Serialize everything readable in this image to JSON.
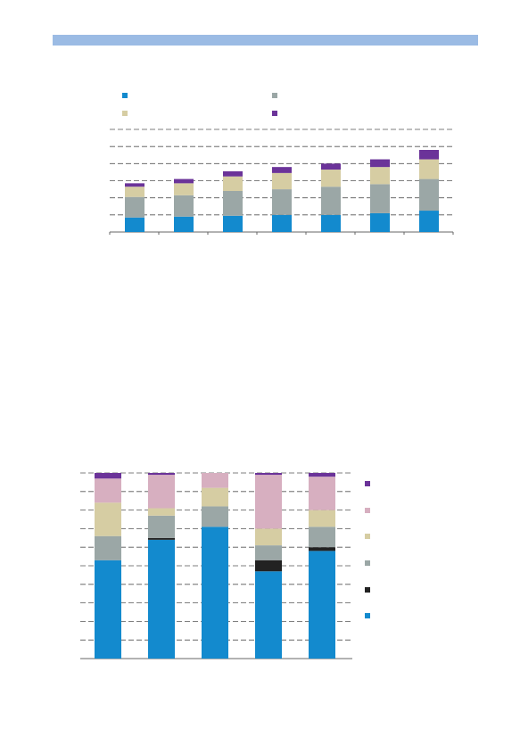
{
  "colors": {
    "band": "#9bbbe4",
    "blue": "#138ace",
    "black": "#222222",
    "gray": "#9ba7a6",
    "beige": "#d6cda3",
    "pink": "#d7afc0",
    "purple": "#6b3399",
    "grid": "#555555",
    "axis": "#666666"
  },
  "chart_data": [
    {
      "type": "bar",
      "stacked": true,
      "categories": [
        "",
        "",
        "",
        "",
        "",
        "",
        ""
      ],
      "ylim": [
        0,
        6
      ],
      "grid": true,
      "legend": "top, 2x2",
      "series": [
        {
          "color": "#138ace",
          "values": [
            0.85,
            0.9,
            0.95,
            1.0,
            1.0,
            1.1,
            1.25
          ]
        },
        {
          "color": "#9ba7a6",
          "values": [
            1.2,
            1.25,
            1.45,
            1.5,
            1.65,
            1.7,
            1.85
          ]
        },
        {
          "color": "#d6cda3",
          "values": [
            0.6,
            0.7,
            0.85,
            0.95,
            1.0,
            1.0,
            1.15
          ]
        },
        {
          "color": "#6b3399",
          "values": [
            0.2,
            0.25,
            0.3,
            0.35,
            0.35,
            0.45,
            0.55
          ]
        }
      ]
    },
    {
      "type": "bar",
      "stacked": true,
      "categories": [
        "",
        "",
        "",
        "",
        ""
      ],
      "ylim": [
        0,
        100
      ],
      "grid": true,
      "legend": "right",
      "series": [
        {
          "color": "#138ace",
          "values": [
            53,
            64,
            71,
            47,
            58
          ]
        },
        {
          "color": "#222222",
          "values": [
            0,
            1,
            0,
            6,
            2
          ]
        },
        {
          "color": "#9ba7a6",
          "values": [
            13,
            12,
            11,
            8,
            11
          ]
        },
        {
          "color": "#d6cda3",
          "values": [
            18,
            4,
            10,
            9,
            9
          ]
        },
        {
          "color": "#d7afc0",
          "values": [
            13,
            18,
            8,
            29,
            18
          ]
        },
        {
          "color": "#6b3399",
          "values": [
            3,
            1,
            0,
            1,
            2
          ]
        }
      ]
    }
  ]
}
